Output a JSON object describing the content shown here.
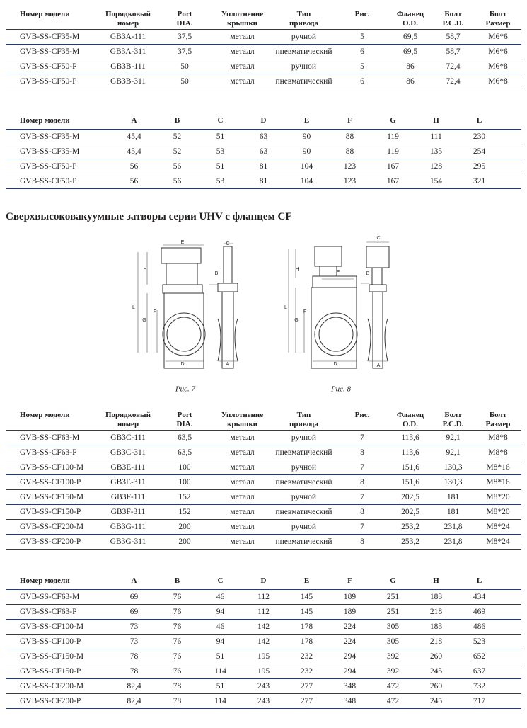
{
  "table1": {
    "header": [
      "Номер модели",
      "Порядковый\nномер",
      "Port\nDIA.",
      "Уплотнение\nкрышки",
      "Тип\nпривода",
      "Рис.",
      "Фланец\nO.D.",
      "Болт\nP.C.D.",
      "Болт\nРазмер"
    ],
    "rows": [
      [
        "GVB-SS-CF35-M",
        "GB3A-111",
        "37,5",
        "металл",
        "ручной",
        "5",
        "69,5",
        "58,7",
        "M6*6"
      ],
      [
        "GVB-SS-CF35-M",
        "GB3A-311",
        "37,5",
        "металл",
        "пневматический",
        "6",
        "69,5",
        "58,7",
        "M6*6"
      ],
      [
        "GVB-SS-CF50-P",
        "GB3B-111",
        "50",
        "металл",
        "ручной",
        "5",
        "86",
        "72,4",
        "M6*8"
      ],
      [
        "GVB-SS-CF50-P",
        "GB3B-311",
        "50",
        "металл",
        "пневматический",
        "6",
        "86",
        "72,4",
        "M6*8"
      ]
    ]
  },
  "table2": {
    "header": [
      "Номер модели",
      "A",
      "B",
      "C",
      "D",
      "E",
      "F",
      "G",
      "H",
      "L"
    ],
    "rows": [
      [
        "GVB-SS-CF35-M",
        "45,4",
        "52",
        "51",
        "63",
        "90",
        "88",
        "119",
        "111",
        "230"
      ],
      [
        "GVB-SS-CF35-M",
        "45,4",
        "52",
        "53",
        "63",
        "90",
        "88",
        "119",
        "135",
        "254"
      ],
      [
        "GVB-SS-CF50-P",
        "56",
        "56",
        "51",
        "81",
        "104",
        "123",
        "167",
        "128",
        "295"
      ],
      [
        "GVB-SS-CF50-P",
        "56",
        "56",
        "53",
        "81",
        "104",
        "123",
        "167",
        "154",
        "321"
      ]
    ]
  },
  "heading": "Сверхвысоковакуумные затворы серии UHV с фланцем CF",
  "figures": [
    {
      "caption": "Рис. 7",
      "labels": [
        "E",
        "C",
        "H",
        "B",
        "L",
        "G",
        "F",
        "D",
        "A"
      ]
    },
    {
      "caption": "Рис. 8",
      "labels": [
        "C",
        "H",
        "E",
        "B",
        "L",
        "G",
        "F",
        "D",
        "A"
      ]
    }
  ],
  "table3": {
    "header": [
      "Номер модели",
      "Порядковый\nномер",
      "Port\nDIA.",
      "Уплотнение\nкрышки",
      "Тип\nпривода",
      "Рис.",
      "Фланец\nO.D.",
      "Болт\nP.C.D.",
      "Болт\nРазмер"
    ],
    "rows": [
      [
        "GVB-SS-CF63-M",
        "GB3C-111",
        "63,5",
        "металл",
        "ручной",
        "7",
        "113,6",
        "92,1",
        "M8*8"
      ],
      [
        "GVB-SS-CF63-P",
        "GB3C-311",
        "63,5",
        "металл",
        "пневматический",
        "8",
        "113,6",
        "92,1",
        "M8*8"
      ],
      [
        "GVB-SS-CF100-M",
        "GB3E-111",
        "100",
        "металл",
        "ручной",
        "7",
        "151,6",
        "130,3",
        "M8*16"
      ],
      [
        "GVB-SS-CF100-P",
        "GB3E-311",
        "100",
        "металл",
        "пневматический",
        "8",
        "151,6",
        "130,3",
        "M8*16"
      ],
      [
        "GVB-SS-CF150-M",
        "GB3F-111",
        "152",
        "металл",
        "ручной",
        "7",
        "202,5",
        "181",
        "M8*20"
      ],
      [
        "GVB-SS-CF150-P",
        "GB3F-311",
        "152",
        "металл",
        "пневматический",
        "8",
        "202,5",
        "181",
        "M8*20"
      ],
      [
        "GVB-SS-CF200-M",
        "GB3G-111",
        "200",
        "металл",
        "ручной",
        "7",
        "253,2",
        "231,8",
        "M8*24"
      ],
      [
        "GVB-SS-CF200-P",
        "GB3G-311",
        "200",
        "металл",
        "пневматический",
        "8",
        "253,2",
        "231,8",
        "M8*24"
      ]
    ]
  },
  "table4": {
    "header": [
      "Номер модели",
      "A",
      "B",
      "C",
      "D",
      "E",
      "F",
      "G",
      "H",
      "L"
    ],
    "rows": [
      [
        "GVB-SS-CF63-M",
        "69",
        "76",
        "46",
        "112",
        "145",
        "189",
        "251",
        "183",
        "434"
      ],
      [
        "GVB-SS-CF63-P",
        "69",
        "76",
        "94",
        "112",
        "145",
        "189",
        "251",
        "218",
        "469"
      ],
      [
        "GVB-SS-CF100-M",
        "73",
        "76",
        "46",
        "142",
        "178",
        "224",
        "305",
        "183",
        "486"
      ],
      [
        "GVB-SS-CF100-P",
        "73",
        "76",
        "94",
        "142",
        "178",
        "224",
        "305",
        "218",
        "523"
      ],
      [
        "GVB-SS-CF150-M",
        "78",
        "76",
        "51",
        "195",
        "232",
        "294",
        "392",
        "260",
        "652"
      ],
      [
        "GVB-SS-CF150-P",
        "78",
        "76",
        "114",
        "195",
        "232",
        "294",
        "392",
        "245",
        "637"
      ],
      [
        "GVB-SS-CF200-M",
        "82,4",
        "78",
        "51",
        "243",
        "277",
        "348",
        "472",
        "260",
        "732"
      ],
      [
        "GVB-SS-CF200-P",
        "82,4",
        "78",
        "114",
        "243",
        "277",
        "348",
        "472",
        "245",
        "717"
      ]
    ]
  }
}
